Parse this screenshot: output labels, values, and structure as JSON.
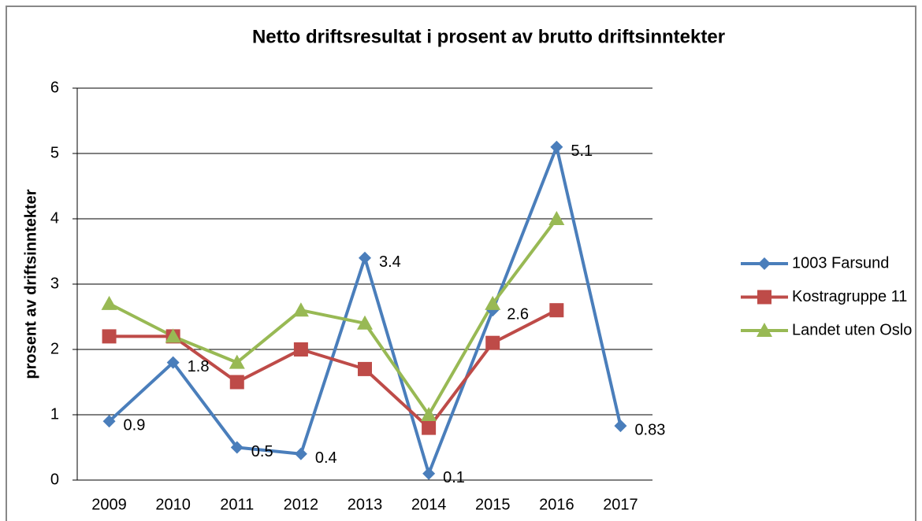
{
  "chart_data": {
    "type": "line",
    "title": "Netto driftsresultat i prosent av brutto driftsinntekter",
    "y_label": "prosent av driftsinntekter",
    "categories": [
      "2009",
      "2010",
      "2011",
      "2012",
      "2013",
      "2014",
      "2015",
      "2016",
      "2017"
    ],
    "series": [
      {
        "name": "1003 Farsund",
        "color": "#4a7ebb",
        "marker": "diamond",
        "data_labels": true,
        "values": [
          0.9,
          1.8,
          0.5,
          0.4,
          3.4,
          0.1,
          2.6,
          5.1,
          0.83
        ]
      },
      {
        "name": "Kostragruppe 11",
        "color": "#be4b48",
        "marker": "square",
        "data_labels": false,
        "values": [
          2.2,
          2.2,
          1.5,
          2.0,
          1.7,
          0.8,
          2.1,
          2.6,
          null
        ]
      },
      {
        "name": "Landet uten Oslo",
        "color": "#98b954",
        "marker": "triangle",
        "data_labels": false,
        "values": [
          2.7,
          2.2,
          1.8,
          2.6,
          2.4,
          1.0,
          2.7,
          4.0,
          null
        ]
      }
    ],
    "ylim": [
      0,
      6
    ],
    "yticks": [
      0,
      1,
      2,
      3,
      4,
      5,
      6
    ],
    "grid": true,
    "legend": "right"
  }
}
